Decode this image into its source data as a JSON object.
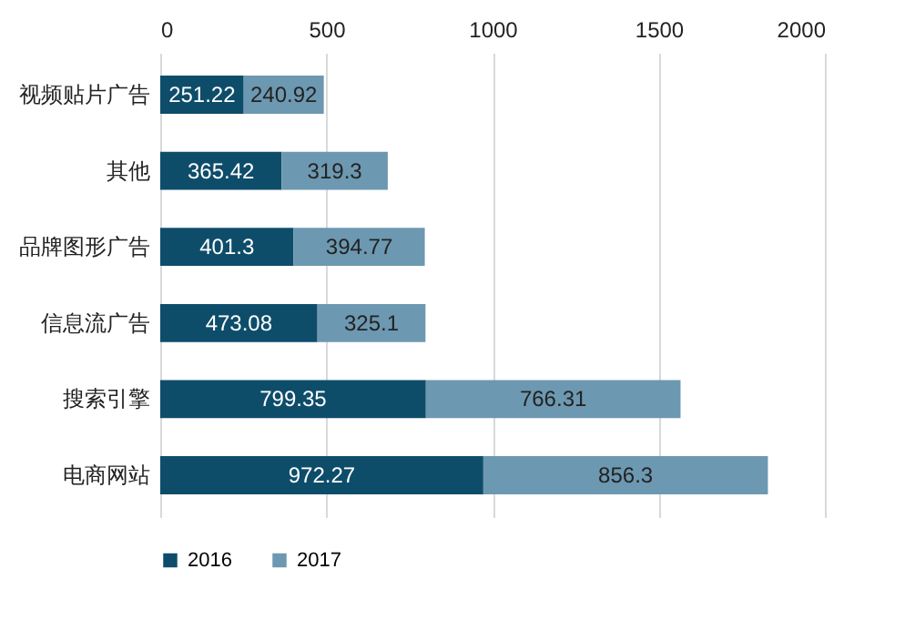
{
  "chart_data": {
    "type": "bar",
    "orientation": "horizontal",
    "stacked": true,
    "categories": [
      "视频贴片广告",
      "其他",
      "品牌图形广告",
      "信息流广告",
      "搜索引擎",
      "电商网站"
    ],
    "series": [
      {
        "name": "2016",
        "color": "#0e4d6a",
        "values": [
          251.22,
          365.42,
          401.3,
          473.08,
          799.35,
          972.27
        ]
      },
      {
        "name": "2017",
        "color": "#6d98b1",
        "values": [
          240.92,
          319.3,
          394.77,
          325.1,
          766.31,
          856.3
        ]
      }
    ],
    "xlim": [
      0,
      2000
    ],
    "xticks": [
      0,
      500,
      1000,
      1500,
      2000
    ],
    "grid": "x",
    "legend": "bottom",
    "data_labels": true
  }
}
